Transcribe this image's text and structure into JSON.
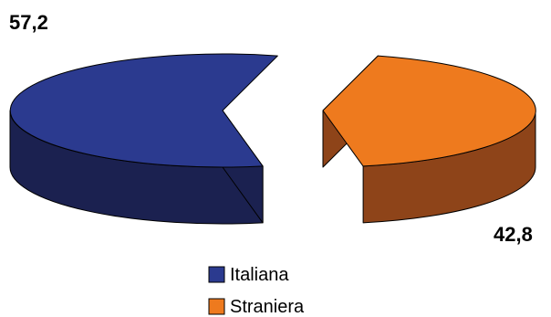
{
  "chart_data": {
    "type": "pie",
    "style": "3d-exploded",
    "categories": [
      "Italiana",
      "Straniera"
    ],
    "values": [
      57.2,
      42.8
    ],
    "value_labels": [
      "57,2",
      "42,8"
    ],
    "colors": {
      "Italiana": {
        "top": "#2B3A8F",
        "side": "#1B2150"
      },
      "Straniera": {
        "top": "#EE7A1E",
        "side": "#8E4419"
      }
    },
    "legend_placement": "bottom-center",
    "title": ""
  }
}
